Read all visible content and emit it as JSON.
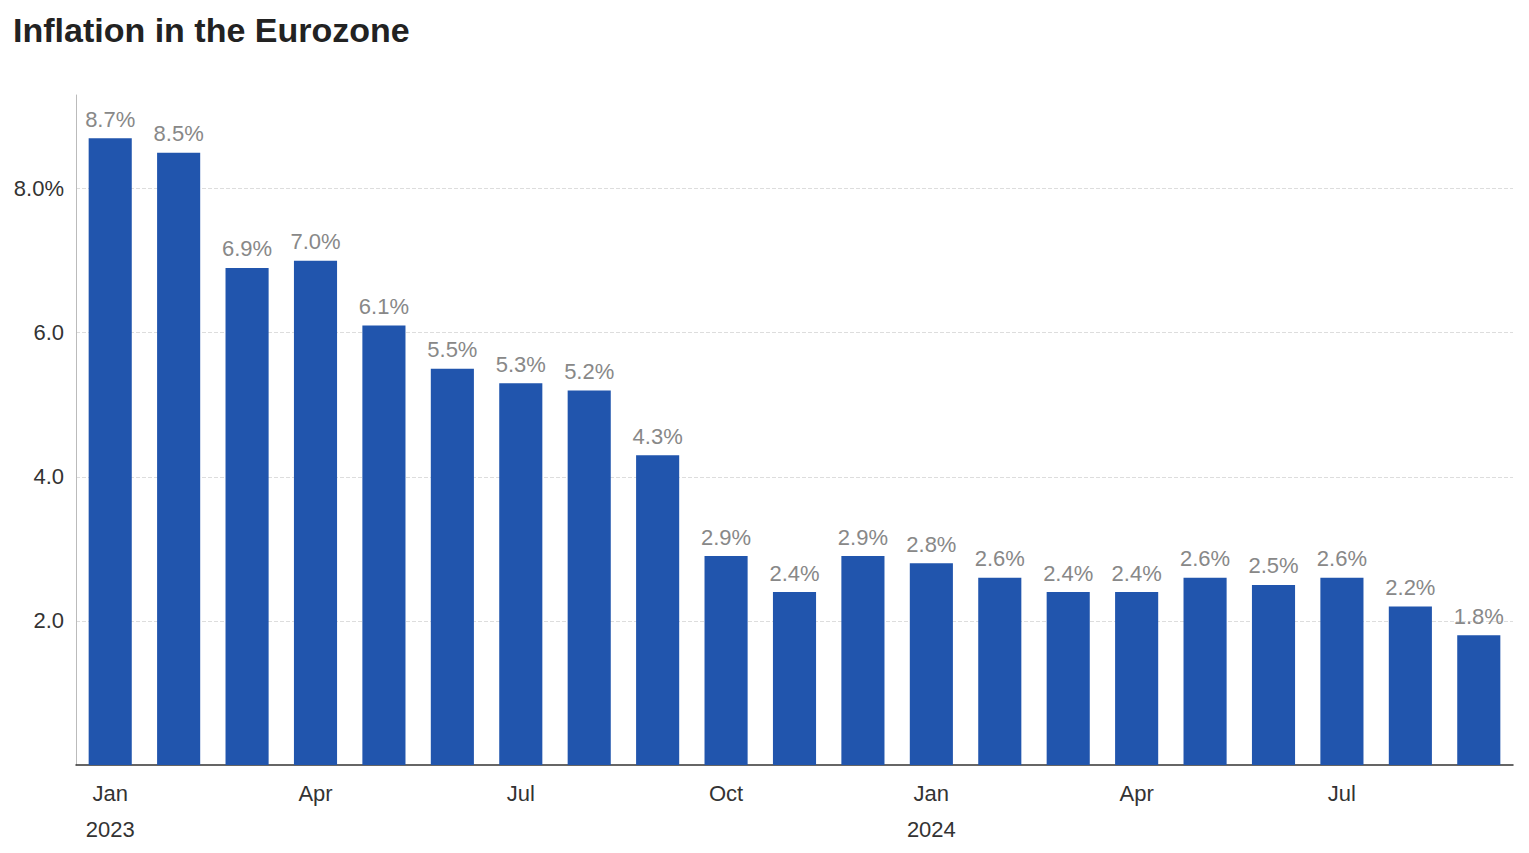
{
  "chart_data": {
    "type": "bar",
    "title": "Inflation in the Eurozone",
    "categories": [
      "Jan 2023",
      null,
      null,
      "Apr",
      null,
      null,
      "Jul",
      null,
      null,
      "Oct",
      null,
      null,
      "Jan 2024",
      null,
      null,
      "Apr",
      null,
      null,
      "Jul",
      null,
      null
    ],
    "values": [
      8.7,
      8.5,
      6.9,
      7.0,
      6.1,
      5.5,
      5.3,
      5.2,
      4.3,
      2.9,
      2.4,
      2.9,
      2.8,
      2.6,
      2.4,
      2.4,
      2.6,
      2.5,
      2.6,
      2.2,
      1.8
    ],
    "value_labels": [
      "8.7%",
      "8.5%",
      "6.9%",
      "7.0%",
      "6.1%",
      "5.5%",
      "5.3%",
      "5.2%",
      "4.3%",
      "2.9%",
      "2.4%",
      "2.9%",
      "2.8%",
      "2.6%",
      "2.4%",
      "2.4%",
      "2.6%",
      "2.5%",
      "2.6%",
      "2.2%",
      "1.8%"
    ],
    "color": "#2155ad",
    "ylim": [
      0,
      9.3
    ],
    "yticks": [
      {
        "value": 2,
        "label": "2.0"
      },
      {
        "value": 4,
        "label": "4.0"
      },
      {
        "value": 6,
        "label": "6.0"
      },
      {
        "value": 8,
        "label": "8.0%"
      }
    ],
    "grid": true,
    "data_labels": true
  }
}
